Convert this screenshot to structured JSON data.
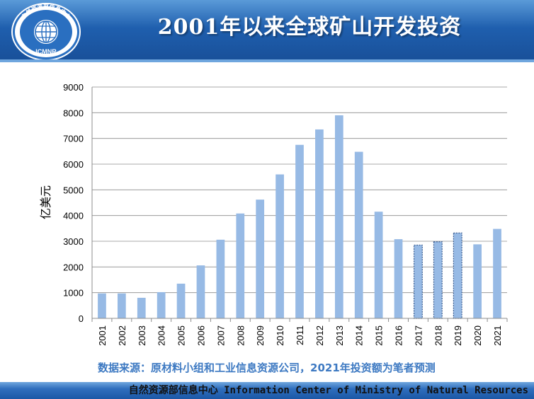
{
  "header": {
    "title": "2001年以来全球矿山开发投资",
    "logo": {
      "text_top": "自然资源部信息中心",
      "text_bottom": "ICMNR",
      "icon": "globe-icon"
    }
  },
  "chart_data": {
    "type": "bar",
    "title": "",
    "xlabel": "",
    "ylabel": "亿美元",
    "ylim": [
      0,
      9000
    ],
    "yticks": [
      0,
      1000,
      2000,
      3000,
      4000,
      5000,
      6000,
      7000,
      8000,
      9000
    ],
    "grid": true,
    "bar_color": "#97bae5",
    "forecast_border_color": "#3b5e92",
    "categories": [
      "2001",
      "2002",
      "2003",
      "2004",
      "2005",
      "2006",
      "2007",
      "2008",
      "2009",
      "2010",
      "2011",
      "2012",
      "2013",
      "2014",
      "2015",
      "2016",
      "2017",
      "2018",
      "2019",
      "2020",
      "2021"
    ],
    "values": [
      970,
      970,
      800,
      1020,
      1350,
      2060,
      3060,
      4080,
      4620,
      5600,
      6750,
      7350,
      7900,
      6480,
      4150,
      3080,
      2850,
      2980,
      3320,
      2880,
      3480
    ],
    "dotted_outline_categories": [
      "2017",
      "2018",
      "2019"
    ]
  },
  "source_note": "数据来源：原材料小组和工业信息资源公司，2021年投资额为笔者预测",
  "footer": {
    "text": "自然资源部信息中心  Information Center of Ministry of Natural Resources"
  }
}
